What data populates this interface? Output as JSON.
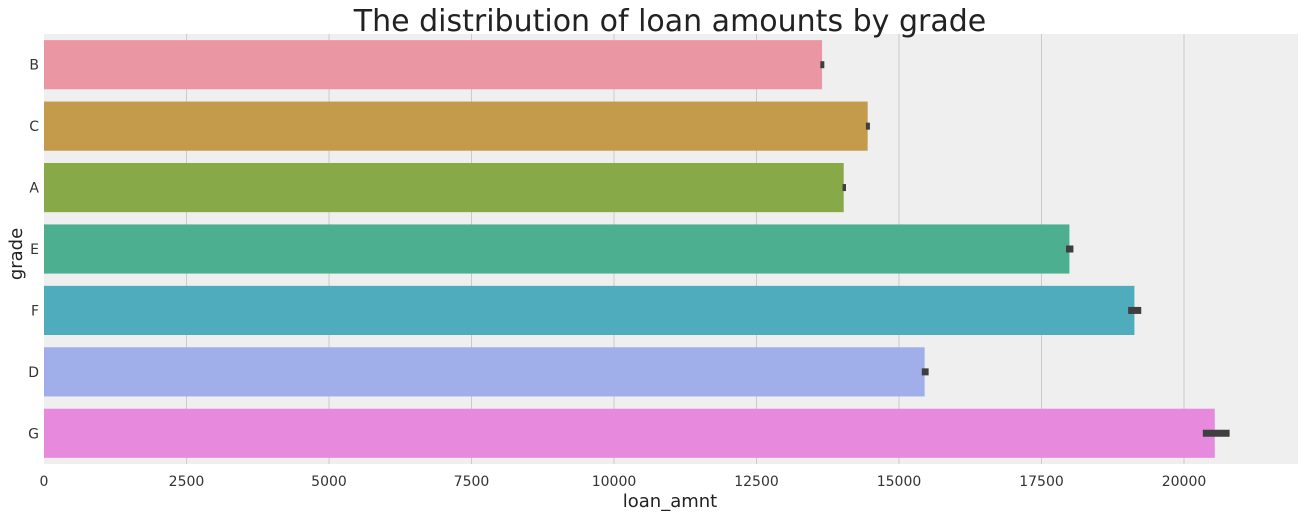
{
  "chart_data": {
    "type": "bar",
    "orientation": "horizontal",
    "title": "The distribution of loan amounts by grade",
    "xlabel": "loan_amnt",
    "ylabel": "grade",
    "categories": [
      "B",
      "C",
      "A",
      "E",
      "F",
      "D",
      "G"
    ],
    "values": [
      13650,
      14450,
      14030,
      17990,
      19130,
      15450,
      20540
    ],
    "error_bars": [
      [
        13620,
        13690
      ],
      [
        14420,
        14490
      ],
      [
        14010,
        14070
      ],
      [
        17930,
        18060
      ],
      [
        19020,
        19250
      ],
      [
        15400,
        15520
      ],
      [
        20330,
        20800
      ]
    ],
    "colors": [
      "#ea96a3",
      "#c39b4b",
      "#88a947",
      "#4baf90",
      "#4facbc",
      "#a0aeea",
      "#e78ade"
    ],
    "error_bar_color": "#3f3f3f",
    "xlim": [
      0,
      22000
    ],
    "xticks": [
      0,
      2500,
      5000,
      7500,
      10000,
      12500,
      15000,
      17500,
      20000
    ],
    "grid": true,
    "grid_axis": "x",
    "background": "#efefef"
  }
}
